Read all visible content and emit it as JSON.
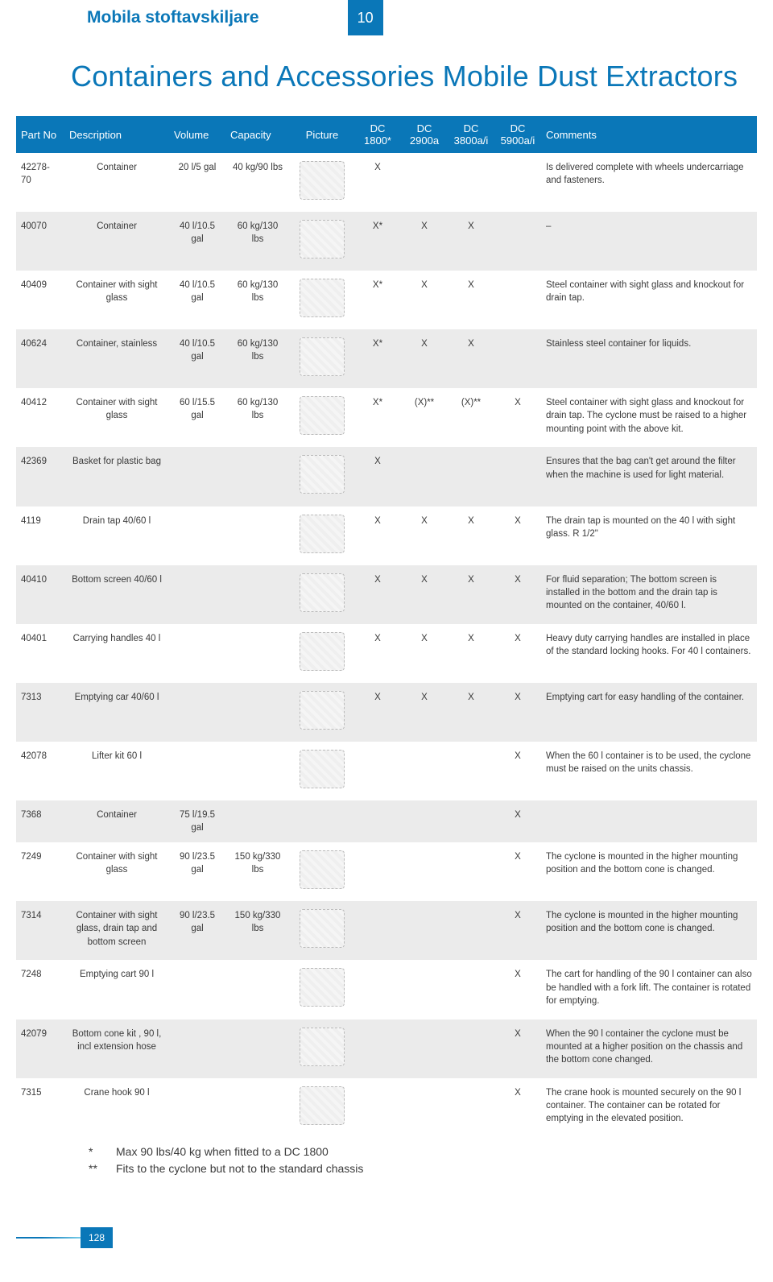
{
  "top_title": "Mobila stoftavskiljare",
  "page_no": "10",
  "main_heading": "Containers and Accessories Mobile Dust Extractors",
  "columns": [
    "Part No",
    "Description",
    "Volume",
    "Capacity",
    "Picture",
    "DC 1800*",
    "DC 2900a",
    "DC 3800a/i",
    "DC 5900a/i",
    "Comments"
  ],
  "rows": [
    {
      "alt": false,
      "part": "42278-70",
      "desc": "Container",
      "vol": "20 l/5 gal",
      "cap": "40 kg/90 lbs",
      "dc1800": "X",
      "dc2900": "",
      "dc3800": "",
      "dc5900": "",
      "comments": "Is delivered complete with wheels undercarriage and fasteners.",
      "pic": true
    },
    {
      "alt": true,
      "part": "40070",
      "desc": "Container",
      "vol": "40 l/10.5 gal",
      "cap": "60 kg/130 lbs",
      "dc1800": "X*",
      "dc2900": "X",
      "dc3800": "X",
      "dc5900": "",
      "comments": "–",
      "pic": true
    },
    {
      "alt": false,
      "part": "40409",
      "desc": "Container with sight glass",
      "vol": "40 l/10.5 gal",
      "cap": "60 kg/130 lbs",
      "dc1800": "X*",
      "dc2900": "X",
      "dc3800": "X",
      "dc5900": "",
      "comments": "Steel container with sight glass and knockout for drain tap.",
      "pic": true
    },
    {
      "alt": true,
      "part": "40624",
      "desc": "Container, stainless",
      "vol": "40 l/10.5 gal",
      "cap": "60 kg/130 lbs",
      "dc1800": "X*",
      "dc2900": "X",
      "dc3800": "X",
      "dc5900": "",
      "comments": "Stainless steel container for liquids.",
      "pic": true
    },
    {
      "alt": false,
      "part": "40412",
      "desc": "Container with sight glass",
      "vol": "60 l/15.5 gal",
      "cap": "60 kg/130 lbs",
      "dc1800": "X*",
      "dc2900": "(X)**",
      "dc3800": "(X)**",
      "dc5900": "X",
      "comments": "Steel container with sight glass and knockout for drain tap. The cyclone must be raised to a higher mounting point with the above kit.",
      "pic": true
    },
    {
      "alt": true,
      "part": "42369",
      "desc": "Basket for plastic bag",
      "vol": "",
      "cap": "",
      "dc1800": "X",
      "dc2900": "",
      "dc3800": "",
      "dc5900": "",
      "comments": "Ensures that the bag can't get around the filter when the machine is used for light material.",
      "pic": true
    },
    {
      "alt": false,
      "part": "4119",
      "desc": "Drain tap 40/60 l",
      "vol": "",
      "cap": "",
      "dc1800": "X",
      "dc2900": "X",
      "dc3800": "X",
      "dc5900": "X",
      "comments": "The drain tap is mounted on the 40 l with sight glass. R 1/2\"",
      "pic": true
    },
    {
      "alt": true,
      "part": "40410",
      "desc": "Bottom screen 40/60 l",
      "vol": "",
      "cap": "",
      "dc1800": "X",
      "dc2900": "X",
      "dc3800": "X",
      "dc5900": "X",
      "comments": "For fluid separation; The bottom screen is installed in the bottom and the drain tap is mounted on the container, 40/60 l.",
      "pic": true
    },
    {
      "alt": false,
      "part": "40401",
      "desc": "Carrying handles 40 l",
      "vol": "",
      "cap": "",
      "dc1800": "X",
      "dc2900": "X",
      "dc3800": "X",
      "dc5900": "X",
      "comments": "Heavy duty carrying handles are installed in place of the standard locking hooks. For 40 l containers.",
      "pic": true
    },
    {
      "alt": true,
      "part": "7313",
      "desc": "Emptying car 40/60 l",
      "vol": "",
      "cap": "",
      "dc1800": "X",
      "dc2900": "X",
      "dc3800": "X",
      "dc5900": "X",
      "comments": "Emptying cart for easy handling of the container.",
      "pic": true
    },
    {
      "alt": false,
      "part": "42078",
      "desc": "Lifter kit 60 l",
      "vol": "",
      "cap": "",
      "dc1800": "",
      "dc2900": "",
      "dc3800": "",
      "dc5900": "X",
      "comments": "When the 60 l container is to be used, the cyclone must be raised on the units chassis.",
      "pic": true
    },
    {
      "alt": true,
      "part": "7368",
      "desc": "Container",
      "vol": "75 l/19.5 gal",
      "cap": "",
      "dc1800": "",
      "dc2900": "",
      "dc3800": "",
      "dc5900": "X",
      "comments": "",
      "pic": false
    },
    {
      "alt": false,
      "part": "7249",
      "desc": "Container with sight glass",
      "vol": "90 l/23.5 gal",
      "cap": "150 kg/330 lbs",
      "dc1800": "",
      "dc2900": "",
      "dc3800": "",
      "dc5900": "X",
      "comments": "The cyclone is mounted in the higher mounting position and the bottom cone is changed.",
      "pic": true
    },
    {
      "alt": true,
      "part": "7314",
      "desc": "Container with sight glass, drain tap and bottom screen",
      "vol": "90 l/23.5 gal",
      "cap": "150 kg/330 lbs",
      "dc1800": "",
      "dc2900": "",
      "dc3800": "",
      "dc5900": "X",
      "comments": "The cyclone is mounted in the higher mounting position and the bottom cone is changed.",
      "pic": true
    },
    {
      "alt": false,
      "part": "7248",
      "desc": "Emptying cart 90 l",
      "vol": "",
      "cap": "",
      "dc1800": "",
      "dc2900": "",
      "dc3800": "",
      "dc5900": "X",
      "comments": "The cart for handling of the 90 l container can also be handled with a fork lift. The container is rotated for emptying.",
      "pic": true
    },
    {
      "alt": true,
      "part": "42079",
      "desc": "Bottom cone kit , 90 l, incl extension hose",
      "vol": "",
      "cap": "",
      "dc1800": "",
      "dc2900": "",
      "dc3800": "",
      "dc5900": "X",
      "comments": "When the 90 l container the cyclone must be mounted at a higher position on the chassis and the bottom cone changed.",
      "pic": true
    },
    {
      "alt": false,
      "part": "7315",
      "desc": "Crane hook 90 l",
      "vol": "",
      "cap": "",
      "dc1800": "",
      "dc2900": "",
      "dc3800": "",
      "dc5900": "X",
      "comments": "The crane hook is mounted securely on the 90 l container. The container can be rotated for emptying in the elevated position.",
      "pic": true
    }
  ],
  "footnotes": [
    {
      "mark": "*",
      "text": "Max 90 lbs/40 kg when fitted to a DC 1800"
    },
    {
      "mark": "**",
      "text": "Fits to the cyclone but not to the standard chassis"
    }
  ],
  "footer_page": "128"
}
